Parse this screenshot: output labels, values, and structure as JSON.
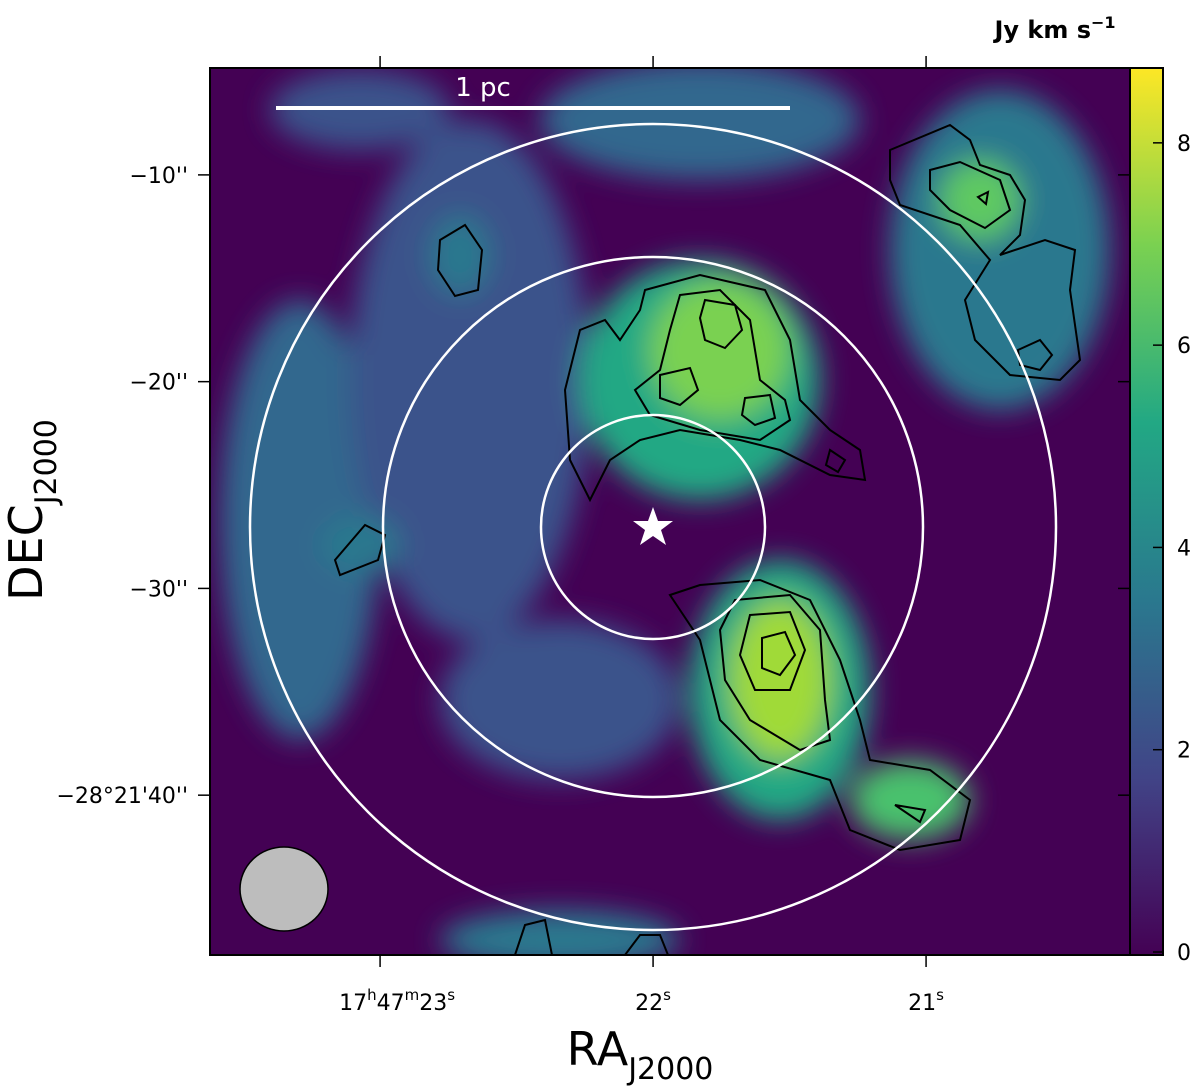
{
  "chart_data": {
    "type": "map",
    "xlabel": "RA",
    "xlabel_sub": "J2000",
    "ylabel": "DEC",
    "ylabel_sub": "J2000",
    "xlim": [
      23.623,
      20.253
    ],
    "xticks": [
      {
        "value": 23,
        "label": [
          "17",
          "h",
          "47",
          "m",
          "23",
          "s"
        ]
      },
      {
        "value": 22,
        "label": [
          "22",
          "s"
        ]
      },
      {
        "value": 21,
        "label": [
          "21",
          "s"
        ]
      }
    ],
    "ylim": [
      -4.83,
      -47.73
    ],
    "yticks": [
      {
        "value": -10,
        "label": "−10''"
      },
      {
        "value": -20,
        "label": "−20''"
      },
      {
        "value": -30,
        "label": "−30''"
      },
      {
        "value": -40,
        "label": "−28°21'40''"
      }
    ],
    "colorbar": {
      "label": "Jy km s",
      "label_sup": "−1",
      "lim": [
        0,
        8.74
      ],
      "ticks": [
        0,
        2,
        4,
        6,
        8
      ]
    },
    "scale_bar": "1 pc"
  }
}
